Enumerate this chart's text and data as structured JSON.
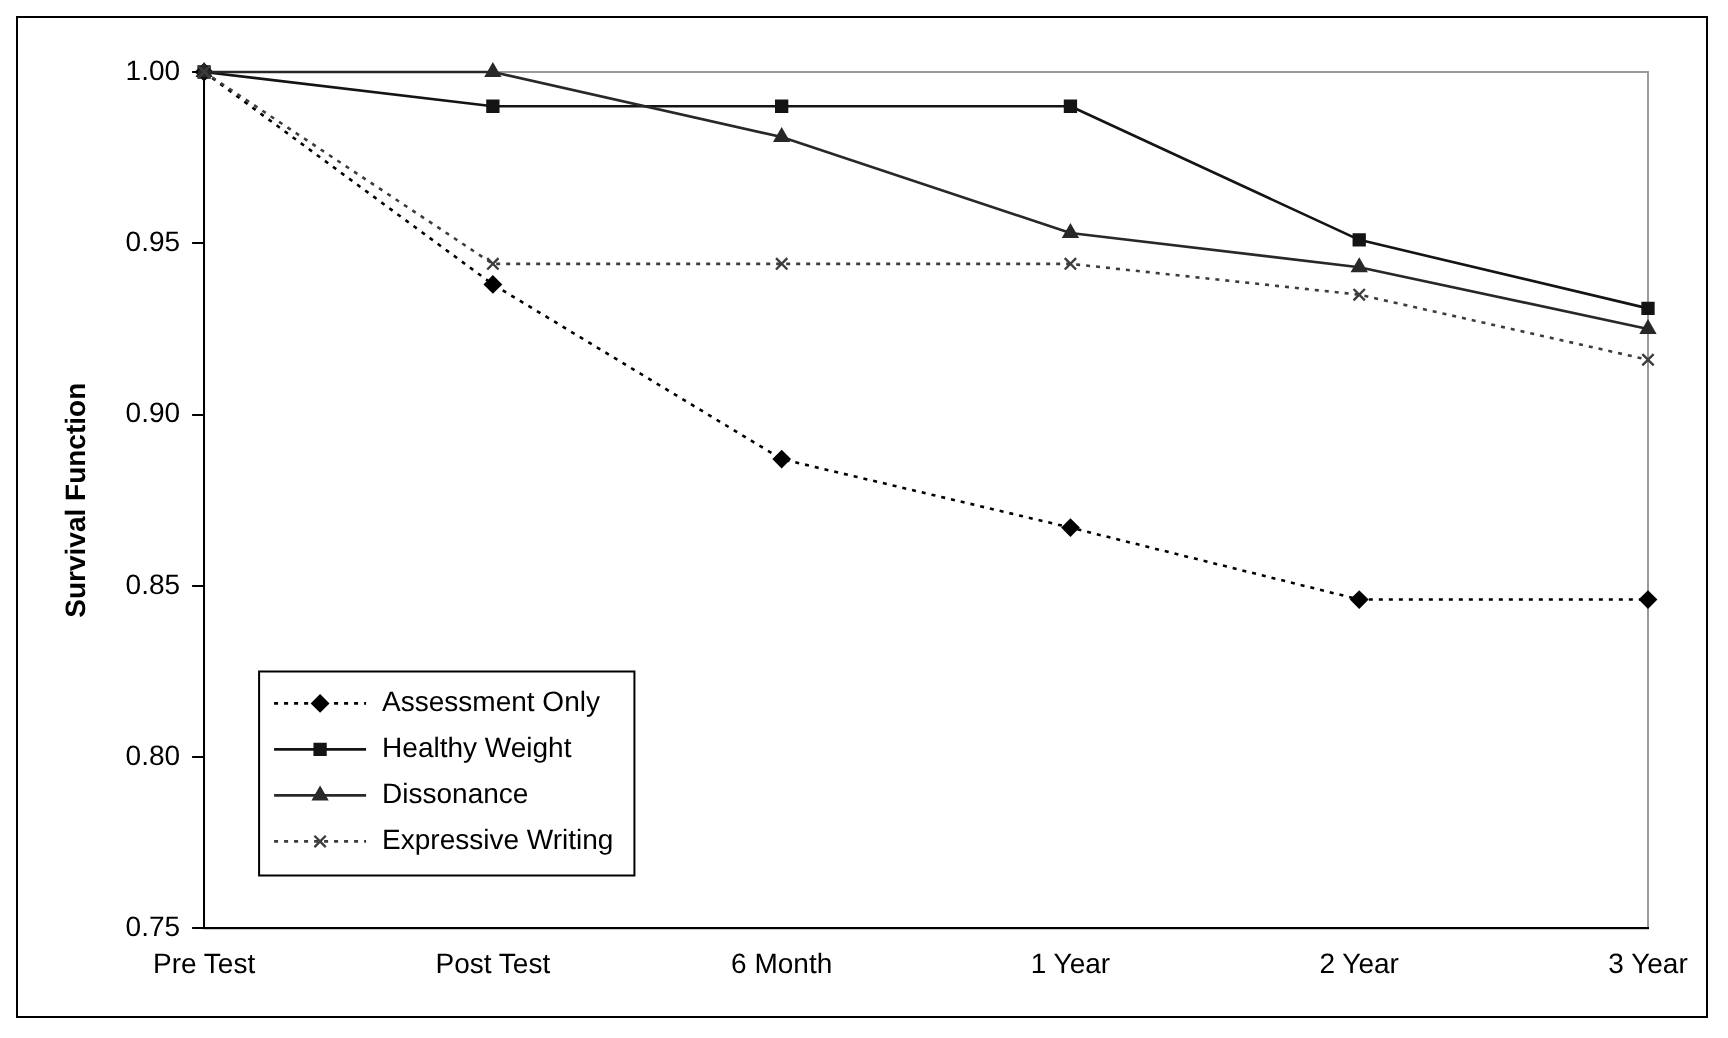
{
  "chart_data": {
    "type": "line",
    "ylabel": "Survival Function",
    "categories": [
      "Pre Test",
      "Post Test",
      "6 Month",
      "1 Year",
      "2 Year",
      "3 Year"
    ],
    "series": [
      {
        "name": "Assessment Only",
        "color": "#000000",
        "marker": "diamond",
        "line_style": "dotted",
        "values": [
          1.0,
          0.938,
          0.887,
          0.867,
          0.846,
          0.846
        ]
      },
      {
        "name": "Healthy Weight",
        "color": "#141414",
        "marker": "square",
        "line_style": "solid",
        "values": [
          1.0,
          0.99,
          0.99,
          0.99,
          0.951,
          0.931
        ]
      },
      {
        "name": "Dissonance",
        "color": "#282828",
        "marker": "triangle",
        "line_style": "solid",
        "values": [
          1.0,
          1.0,
          0.981,
          0.953,
          0.943,
          0.925
        ]
      },
      {
        "name": "Expressive Writing",
        "color": "#3c3c3c",
        "marker": "cross",
        "line_style": "dotted",
        "values": [
          1.0,
          0.944,
          0.944,
          0.944,
          0.935,
          0.916
        ]
      }
    ],
    "ylim": [
      0.75,
      1.0
    ],
    "yticks": [
      {
        "value": 0.75,
        "label": "0.75"
      },
      {
        "value": 0.8,
        "label": "0.80"
      },
      {
        "value": 0.85,
        "label": "0.85"
      },
      {
        "value": 0.9,
        "label": "0.90"
      },
      {
        "value": 0.95,
        "label": "0.95"
      },
      {
        "value": 1.0,
        "label": "1.00"
      }
    ],
    "grid": false,
    "legend": "bottom left"
  }
}
